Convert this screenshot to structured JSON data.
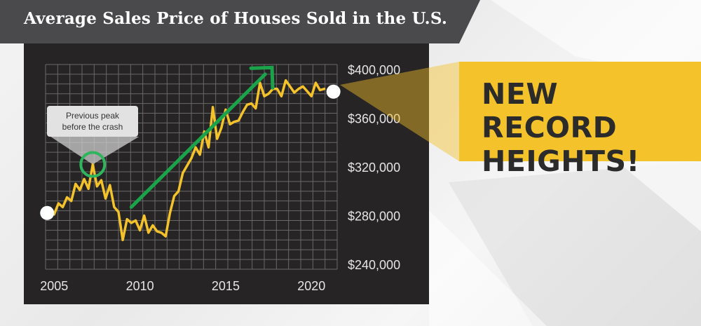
{
  "title": "Average Sales Price of Houses Sold in the U.S.",
  "callout": {
    "line1": "NEW RECORD",
    "line2": "HEIGHTS!"
  },
  "annotation": {
    "line1": "Previous peak",
    "line2": "before the crash"
  },
  "colors": {
    "line": "#f4c22a",
    "arrow": "#1aa34a",
    "peak_circle": "#2fb55e",
    "panel": "#262424",
    "grid": "#6a6868",
    "banner": "#4a4a4c",
    "callout": "#f4c22a"
  },
  "chart_data": {
    "type": "line",
    "title": "Average Sales Price of Houses Sold in the U.S.",
    "xlabel": "",
    "ylabel": "",
    "xlim": [
      2004.5,
      2021.5
    ],
    "ylim": [
      236000,
      404000
    ],
    "x_ticks": [
      2005,
      2010,
      2015,
      2020
    ],
    "x_tick_labels": [
      "2005",
      "2010",
      "2015",
      "2020"
    ],
    "y_ticks": [
      240000,
      280000,
      320000,
      360000,
      400000
    ],
    "y_tick_labels": [
      "$240,000",
      "$280,000",
      "$320,000",
      "$360,000",
      "$400,000"
    ],
    "grid": true,
    "series": [
      {
        "x": [
          2005.0,
          2005.25,
          2005.5,
          2005.75,
          2006.0,
          2006.25,
          2006.5,
          2006.75,
          2007.0,
          2007.25,
          2007.5,
          2007.75,
          2008.0,
          2008.25,
          2008.5,
          2008.75,
          2009.0,
          2009.25,
          2009.5,
          2009.75,
          2010.0,
          2010.25,
          2010.5,
          2010.75,
          2011.0,
          2011.25,
          2011.5,
          2011.75,
          2012.0,
          2012.25,
          2012.5,
          2012.75,
          2013.0,
          2013.25,
          2013.5,
          2013.75,
          2014.0,
          2014.25,
          2014.5,
          2014.75,
          2015.0,
          2015.25,
          2015.5,
          2015.75,
          2016.0,
          2016.25,
          2016.5,
          2016.75,
          2017.0,
          2017.25,
          2017.5,
          2017.75,
          2018.0,
          2018.25,
          2018.5,
          2018.75,
          2019.0,
          2019.25,
          2019.5,
          2019.75,
          2020.0,
          2020.25,
          2020.5,
          2020.75
        ],
        "values": [
          281000,
          290000,
          287000,
          295000,
          292000,
          306000,
          301000,
          310000,
          302000,
          322000,
          304000,
          309000,
          294000,
          305000,
          287000,
          283000,
          260000,
          277000,
          274000,
          276000,
          268000,
          280000,
          266000,
          272000,
          267000,
          266000,
          263000,
          282000,
          296000,
          300000,
          315000,
          321000,
          327000,
          336000,
          330000,
          349000,
          336000,
          369000,
          343000,
          352000,
          367000,
          355000,
          357000,
          358000,
          365000,
          371000,
          372000,
          368000,
          389000,
          378000,
          380000,
          384000,
          384000,
          378000,
          391000,
          386000,
          381000,
          384000,
          386000,
          382000,
          378000,
          389000,
          383000,
          384000
        ]
      }
    ],
    "annotations": [
      {
        "text": "Previous peak before the crash",
        "x": 2007.25,
        "y": 322000
      },
      {
        "text": "NEW RECORD HEIGHTS!",
        "x": 2021.0,
        "y": 383000
      }
    ]
  }
}
